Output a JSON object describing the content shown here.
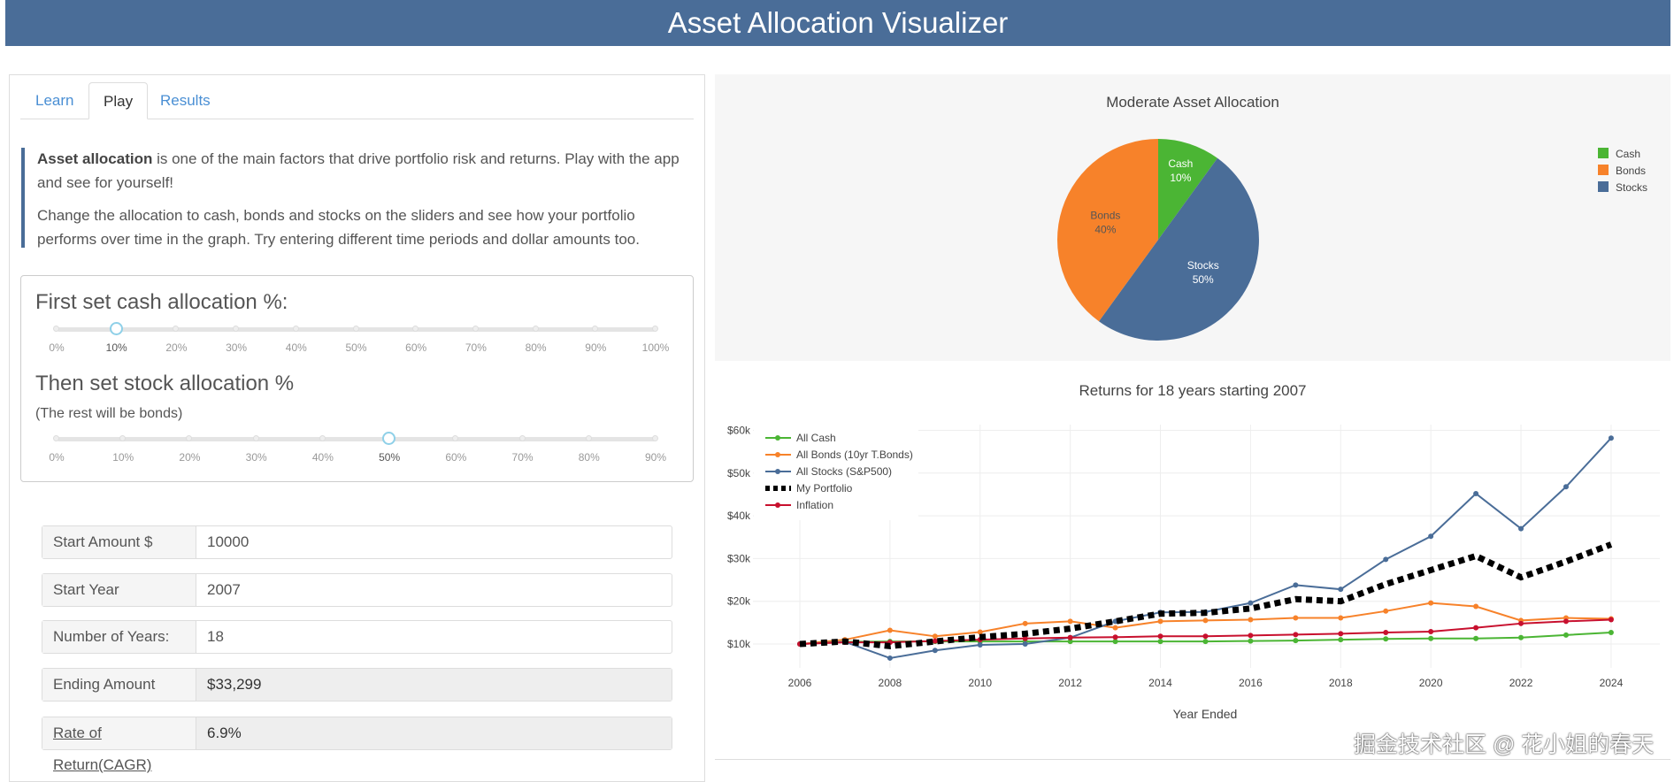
{
  "header": {
    "title": "Asset Allocation Visualizer"
  },
  "tabs": [
    {
      "label": "Learn"
    },
    {
      "label": "Play"
    },
    {
      "label": "Results"
    }
  ],
  "intro": {
    "bold": "Asset allocation",
    "p1": " is one of the main factors that drive portfolio risk and returns. Play with the app and see for yourself!",
    "p2": "Change the allocation to cash, bonds and stocks on the sliders and see how your portfolio performs over time in the graph. Try entering different time periods and dollar amounts too."
  },
  "cash_slider": {
    "heading": "First set cash allocation %:",
    "ticks": [
      "0%",
      "10%",
      "20%",
      "30%",
      "40%",
      "50%",
      "60%",
      "70%",
      "80%",
      "90%",
      "100%"
    ],
    "value": 10
  },
  "stock_slider": {
    "heading": "Then set stock allocation %",
    "note": "(The rest will be bonds)",
    "ticks": [
      "0%",
      "10%",
      "20%",
      "30%",
      "40%",
      "50%",
      "60%",
      "70%",
      "80%",
      "90%"
    ],
    "value": 50
  },
  "form": [
    {
      "label": "Start Amount $",
      "value": "10000",
      "readonly": false
    },
    {
      "label": "Start Year",
      "value": "2007",
      "readonly": false
    },
    {
      "label": "Number of Years:",
      "value": "18",
      "readonly": false
    },
    {
      "label": "Ending Amount",
      "value": "$33,299",
      "readonly": true
    },
    {
      "label": "Rate of Return(CAGR)",
      "value": "6.9%",
      "readonly": true
    }
  ],
  "watermark": "掘金技术社区 @ 花小姐的春天",
  "chart_data": [
    {
      "type": "pie",
      "title": "Moderate Asset Allocation",
      "legend": "top-right",
      "slices": [
        {
          "label": "Cash",
          "value": 10,
          "text": "10%",
          "color": "#4bb534"
        },
        {
          "label": "Stocks",
          "value": 50,
          "text": "50%",
          "color": "#4a6d98"
        },
        {
          "label": "Bonds",
          "value": 40,
          "text": "40%",
          "color": "#f7822a"
        }
      ],
      "legend_order": [
        "Cash",
        "Bonds",
        "Stocks"
      ]
    },
    {
      "type": "line",
      "title": "Returns for 18 years starting 2007",
      "xlabel": "Year Ended",
      "ylabel": "",
      "legend": "top-left",
      "grid": true,
      "x": [
        2006,
        2007,
        2008,
        2009,
        2010,
        2011,
        2012,
        2013,
        2014,
        2015,
        2016,
        2017,
        2018,
        2019,
        2020,
        2021,
        2022,
        2023,
        2024
      ],
      "xticks": [
        "2006",
        "2008",
        "2010",
        "2012",
        "2014",
        "2016",
        "2018",
        "2020",
        "2022",
        "2024"
      ],
      "yticks": [
        {
          "v": 10000,
          "t": "$10k"
        },
        {
          "v": 20000,
          "t": "$20k"
        },
        {
          "v": 30000,
          "t": "$30k"
        },
        {
          "v": 40000,
          "t": "$40k"
        },
        {
          "v": 50000,
          "t": "$50k"
        },
        {
          "v": 60000,
          "t": "$60k"
        }
      ],
      "ylim": [
        4500,
        63000
      ],
      "series": [
        {
          "name": "All Cash",
          "color": "#4bb534",
          "dash": false,
          "values": [
            10000,
            10500,
            10600,
            10600,
            10600,
            10600,
            10600,
            10600,
            10600,
            10600,
            10700,
            10800,
            11000,
            11200,
            11300,
            11300,
            11500,
            12100,
            12700
          ]
        },
        {
          "name": "All Bonds (10yr T.Bonds)",
          "color": "#f7822a",
          "dash": false,
          "values": [
            10000,
            11000,
            13200,
            11800,
            12800,
            14800,
            15300,
            13800,
            15300,
            15500,
            15700,
            16100,
            16100,
            17700,
            19600,
            18800,
            15500,
            16100,
            15900
          ]
        },
        {
          "name": "All Stocks (S&P500)",
          "color": "#4a6d98",
          "dash": false,
          "values": [
            10000,
            10500,
            6700,
            8500,
            9800,
            10000,
            11500,
            15300,
            17400,
            17500,
            19600,
            23800,
            22800,
            29800,
            35200,
            45200,
            37000,
            46800,
            58200
          ]
        },
        {
          "name": "My Portfolio",
          "color": "#000000",
          "dash": true,
          "values": [
            10000,
            10600,
            9500,
            10600,
            11600,
            12400,
            13600,
            15300,
            17100,
            17300,
            18300,
            20500,
            20000,
            24000,
            27300,
            30600,
            25600,
            29300,
            33300
          ]
        },
        {
          "name": "Inflation",
          "color": "#c8102e",
          "dash": false,
          "values": [
            10000,
            10400,
            10400,
            10700,
            11000,
            11300,
            11500,
            11600,
            11800,
            11800,
            12000,
            12200,
            12400,
            12700,
            12900,
            13800,
            14800,
            15300,
            15700
          ]
        }
      ]
    }
  ]
}
